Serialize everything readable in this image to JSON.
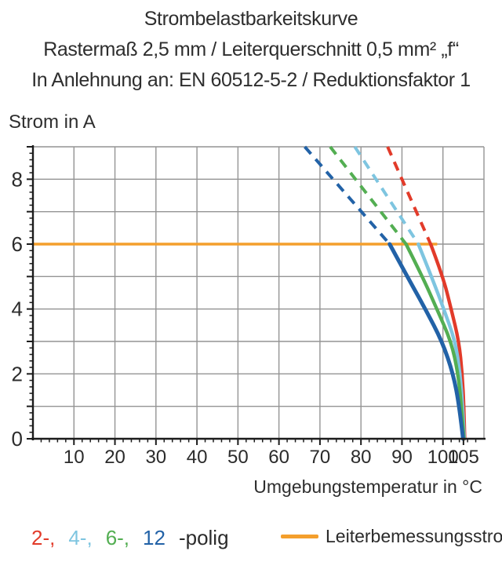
{
  "title": {
    "line1": "Strombelastbarkeitskurve",
    "line2": "Rastermaß 2,5 mm / Leiterquerschnitt 0,5 mm² „f“",
    "line3": "In Anlehnung an: EN 60512-5-2 / Reduktionsfaktor 1"
  },
  "chart_data": {
    "type": "line",
    "title": "Strombelastbarkeitskurve",
    "ylabel": "Strom in A",
    "xlabel": "Umgebungstemperatur in °C",
    "xlim": [
      0,
      110
    ],
    "ylim": [
      0,
      9
    ],
    "x_major_ticks": [
      10,
      20,
      30,
      40,
      50,
      60,
      70,
      80,
      90,
      100,
      105
    ],
    "x_grid_ticks": [
      10,
      20,
      30,
      40,
      50,
      60,
      70,
      80,
      90,
      100
    ],
    "x_minor_step": 2,
    "y_tick_labels": [
      0,
      2,
      4,
      6,
      8
    ],
    "y_major_step": 1,
    "y_minor_step": 0.2,
    "grid": true,
    "grid_color": "#949494",
    "axis_color": "#1c1c1c",
    "text_color": "#2b2b2b",
    "rated_current": {
      "value": 6,
      "x_start": 0,
      "x_end": 98.6,
      "color": "#F49F2C",
      "label": "Leiterbemessungsstrom"
    },
    "series": [
      {
        "name": "2-polig",
        "color": "#E23B2A",
        "dashed_points": [
          [
            86.5,
            9
          ],
          [
            97,
            6
          ]
        ],
        "solid_points": [
          [
            97,
            6
          ],
          [
            100,
            5
          ],
          [
            102,
            4
          ],
          [
            103.9,
            3
          ],
          [
            104.7,
            2
          ],
          [
            105.1,
            1
          ],
          [
            105.3,
            0
          ]
        ]
      },
      {
        "name": "4-polig",
        "color": "#7EC5E0",
        "dashed_points": [
          [
            78.5,
            9
          ],
          [
            94,
            6
          ]
        ],
        "solid_points": [
          [
            94,
            6
          ],
          [
            97.2,
            5
          ],
          [
            100.2,
            4
          ],
          [
            103,
            3
          ],
          [
            104.2,
            2
          ],
          [
            104.8,
            1
          ],
          [
            105.2,
            0
          ]
        ]
      },
      {
        "name": "6-polig",
        "color": "#53AE52",
        "dashed_points": [
          [
            72.5,
            9
          ],
          [
            91,
            6
          ]
        ],
        "solid_points": [
          [
            91,
            6
          ],
          [
            95,
            5
          ],
          [
            98.5,
            4
          ],
          [
            102,
            3
          ],
          [
            103.7,
            2
          ],
          [
            104.5,
            1
          ],
          [
            105.1,
            0
          ]
        ]
      },
      {
        "name": "12-polig",
        "color": "#2262A7",
        "dashed_points": [
          [
            66.3,
            9
          ],
          [
            87,
            6
          ]
        ],
        "solid_points": [
          [
            87,
            6
          ],
          [
            91.3,
            5
          ],
          [
            95.7,
            4
          ],
          [
            99.8,
            3
          ],
          [
            102.5,
            2
          ],
          [
            104,
            1
          ],
          [
            104.9,
            0
          ]
        ]
      }
    ],
    "legend_position": "bottom"
  },
  "legend": {
    "poles": [
      {
        "label": "2-,",
        "color": "#E23B2A"
      },
      {
        "label": "4-,",
        "color": "#7EC5E0"
      },
      {
        "label": "6-,",
        "color": "#53AE52"
      },
      {
        "label": "12",
        "color": "#2262A7"
      }
    ],
    "suffix": "-polig"
  }
}
